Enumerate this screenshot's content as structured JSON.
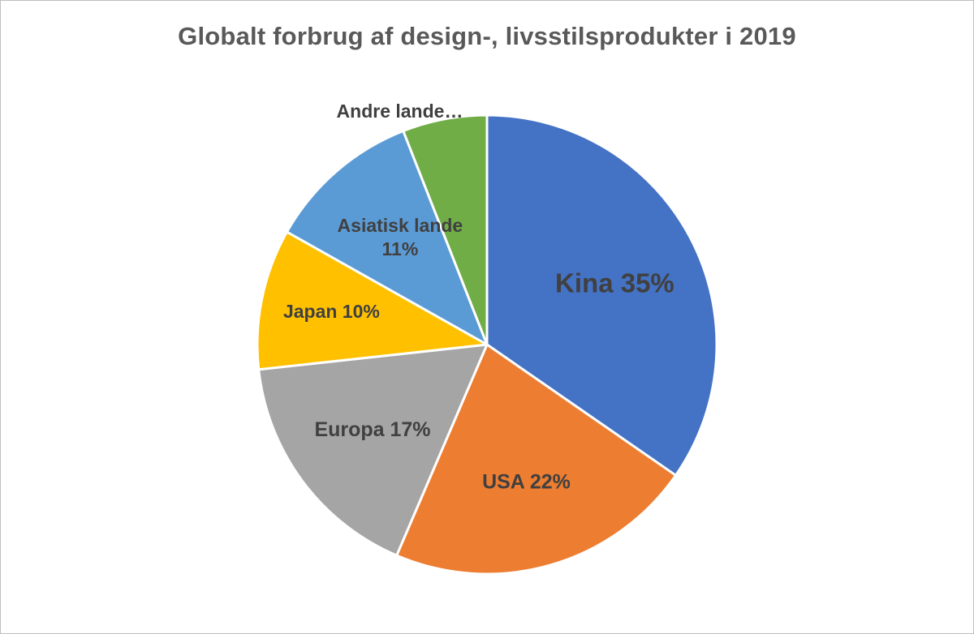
{
  "chart_data": {
    "type": "pie",
    "title": "Globalt forbrug af design-, livsstilsprodukter i 2019",
    "slices": [
      {
        "name": "Kina",
        "value": 35,
        "color": "#4472c4",
        "label": [
          "Kina 35%"
        ]
      },
      {
        "name": "USA",
        "value": 22,
        "color": "#ed7d31",
        "label": [
          "USA 22%"
        ]
      },
      {
        "name": "Europa",
        "value": 17,
        "color": "#a5a5a5",
        "label": [
          "Europa 17%"
        ]
      },
      {
        "name": "Japan",
        "value": 10,
        "color": "#ffc000",
        "label": [
          "Japan 10%"
        ]
      },
      {
        "name": "Asiatisk lande",
        "value": 11,
        "color": "#5b9bd5",
        "label": [
          "Asiatisk lande",
          "11%"
        ]
      },
      {
        "name": "Andre lande",
        "value": 6,
        "color": "#70ad47",
        "label": [
          "Andre lande…"
        ]
      }
    ],
    "start_angle": "12 o'clock",
    "direction": "clockwise"
  }
}
